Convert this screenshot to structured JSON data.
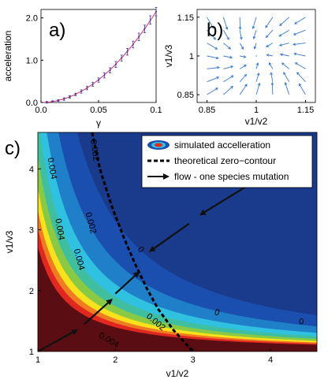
{
  "chart_data": [
    {
      "panel": "a)",
      "type": "scatter",
      "xlabel": "γ",
      "ylabel": "acceleration",
      "xlim": [
        0,
        0.1
      ],
      "ylim": [
        0,
        2.2
      ],
      "xticks": [
        "0.0",
        "0.05",
        "0.1"
      ],
      "yticks": [
        "0.0",
        "1.0",
        "2.0"
      ],
      "points": {
        "x": [
          0.005,
          0.01,
          0.015,
          0.02,
          0.025,
          0.03,
          0.035,
          0.04,
          0.045,
          0.05,
          0.055,
          0.06,
          0.065,
          0.07,
          0.075,
          0.08,
          0.085,
          0.09,
          0.095,
          0.1
        ],
        "y": [
          0.005,
          0.02,
          0.045,
          0.08,
          0.13,
          0.19,
          0.26,
          0.34,
          0.43,
          0.53,
          0.64,
          0.76,
          0.9,
          1.05,
          1.2,
          1.37,
          1.55,
          1.74,
          1.95,
          2.15
        ],
        "err": [
          0.02,
          0.02,
          0.02,
          0.03,
          0.03,
          0.03,
          0.04,
          0.04,
          0.05,
          0.05,
          0.06,
          0.06,
          0.07,
          0.07,
          0.08,
          0.08,
          0.09,
          0.09,
          0.1,
          0.1
        ]
      },
      "curve": {
        "x": [
          0,
          0.02,
          0.04,
          0.06,
          0.08,
          0.1
        ],
        "y": [
          0,
          0.086,
          0.344,
          0.774,
          1.376,
          2.15
        ]
      },
      "colors": {
        "points": "#3a3aa0",
        "curve": "#e0306a"
      }
    },
    {
      "panel": "b)",
      "type": "quiver",
      "xlabel": "v1/v2",
      "ylabel": "v1/v3",
      "xlim": [
        0.82,
        1.18
      ],
      "ylim": [
        0.82,
        1.18
      ],
      "xticks": [
        "0.85",
        "1",
        "1.15"
      ],
      "yticks": [
        "0.85",
        "1",
        "1.15"
      ],
      "arrow_color": "#3a7ad0",
      "grid_x": [
        0.85,
        0.9,
        0.95,
        1.0,
        1.05,
        1.1,
        1.15
      ],
      "grid_y": [
        0.85,
        0.9,
        0.95,
        1.0,
        1.05,
        1.1,
        1.15
      ]
    },
    {
      "panel": "c)",
      "type": "contour",
      "xlabel": "v1/v2",
      "ylabel": "v1/v3",
      "xlim": [
        1,
        4.6
      ],
      "ylim": [
        1,
        4.6
      ],
      "xticks": [
        "1",
        "2",
        "3",
        "4"
      ],
      "yticks": [
        "1",
        "2",
        "3",
        "4"
      ],
      "levels": [
        {
          "color": "#5a0d12"
        },
        {
          "color": "#e02820"
        },
        {
          "color": "#f07c22"
        },
        {
          "color": "#f7e21c"
        },
        {
          "color": "#89c944"
        },
        {
          "color": "#3fbfa0"
        },
        {
          "color": "#30c0e0"
        },
        {
          "color": "#1f7fc8"
        },
        {
          "color": "#1a4fb0"
        },
        {
          "color": "#1a3a8c"
        }
      ],
      "contour_labels": [
        {
          "text": "0.004",
          "x": 1.15,
          "y": 4.0,
          "rot": 80
        },
        {
          "text": "0.002",
          "x": 1.7,
          "y": 4.3,
          "rot": 82
        },
        {
          "text": "0",
          "x": 2.75,
          "y": 4.15,
          "rot": 75
        },
        {
          "text": "0.002",
          "x": 1.65,
          "y": 3.1,
          "rot": 75
        },
        {
          "text": "0.004",
          "x": 1.5,
          "y": 2.5,
          "rot": 75
        },
        {
          "text": "0.004",
          "x": 1.25,
          "y": 3.0,
          "rot": 80
        },
        {
          "text": "0",
          "x": 2.3,
          "y": 2.65,
          "rot": 55
        },
        {
          "text": "0",
          "x": 3.3,
          "y": 1.6,
          "rot": 20
        },
        {
          "text": "0",
          "x": 4.4,
          "y": 1.45,
          "rot": 0
        },
        {
          "text": "0.002",
          "x": 2.5,
          "y": 1.45,
          "rot": 40
        },
        {
          "text": "0.004",
          "x": 1.9,
          "y": 1.15,
          "rot": 30
        }
      ],
      "zero_contour": {
        "x": [
          1.7,
          1.8,
          1.95,
          2.1,
          2.25,
          2.4,
          2.55,
          2.75,
          3.0
        ],
        "y": [
          4.6,
          4.0,
          3.4,
          2.9,
          2.45,
          2.05,
          1.7,
          1.35,
          1.0
        ]
      },
      "flow_arrows": [
        {
          "x1": 1.0,
          "y1": 1.0,
          "x2": 1.5,
          "y2": 1.35
        },
        {
          "x1": 1.6,
          "y1": 1.45,
          "x2": 1.95,
          "y2": 1.85
        },
        {
          "x1": 2.0,
          "y1": 1.95,
          "x2": 2.3,
          "y2": 2.3
        },
        {
          "x1": 2.95,
          "y1": 3.1,
          "x2": 2.45,
          "y2": 2.65
        },
        {
          "x1": 3.8,
          "y1": 3.8,
          "x2": 3.1,
          "y2": 3.25
        }
      ],
      "legend": {
        "position": "top-right",
        "entries": [
          {
            "label": "simulated accelleration",
            "symbol": "ellipse"
          },
          {
            "label": "theoretical zero−contour",
            "symbol": "dashed"
          },
          {
            "label": "flow - one species mutation",
            "symbol": "arrow"
          }
        ]
      }
    }
  ]
}
